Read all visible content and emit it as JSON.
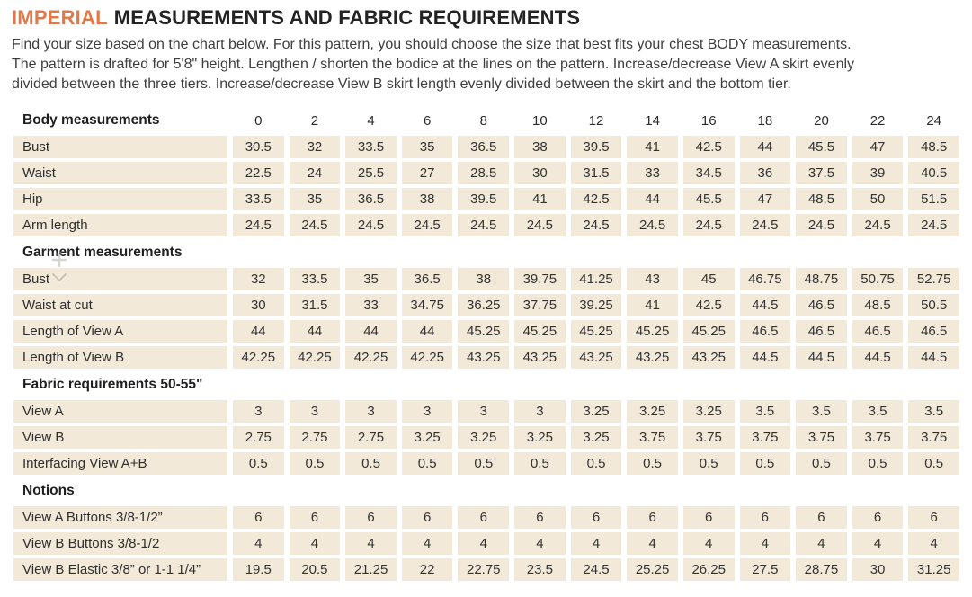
{
  "page": {
    "title": {
      "highlight": "IMPERIAL",
      "rest": "MEASUREMENTS AND FABRIC REQUIREMENTS"
    },
    "intro_lines": [
      "Find your size based on the chart below. For this pattern, you should choose the size that best fits your chest BODY measurements.",
      "The pattern is drafted for 5'8\" height. Lengthen / shorten the bodice at the lines on the pattern. Increase/decrease View A skirt evenly",
      "divided between the three tiers. Increase/decrease View B skirt length evenly divided between the skirt and the bottom tier."
    ]
  },
  "colors": {
    "accent_orange": "#e0794a",
    "row_beige": "#f2e9d8",
    "text_dark": "#232323",
    "text_body": "#3e3e3e"
  },
  "icons": {
    "cursor": "scroll-cursor"
  },
  "chart_data": {
    "type": "table",
    "title": "IMPERIAL MEASUREMENTS AND FABRIC REQUIREMENTS",
    "sizes": [
      "0",
      "2",
      "4",
      "6",
      "8",
      "10",
      "12",
      "14",
      "16",
      "18",
      "20",
      "22",
      "24"
    ],
    "sections": [
      {
        "header": "Body measurements",
        "show_sizes": true,
        "rows": [
          {
            "label": "Bust",
            "values": [
              "30.5",
              "32",
              "33.5",
              "35",
              "36.5",
              "38",
              "39.5",
              "41",
              "42.5",
              "44",
              "45.5",
              "47",
              "48.5"
            ]
          },
          {
            "label": "Waist",
            "values": [
              "22.5",
              "24",
              "25.5",
              "27",
              "28.5",
              "30",
              "31.5",
              "33",
              "34.5",
              "36",
              "37.5",
              "39",
              "40.5"
            ]
          },
          {
            "label": "Hip",
            "values": [
              "33.5",
              "35",
              "36.5",
              "38",
              "39.5",
              "41",
              "42.5",
              "44",
              "45.5",
              "47",
              "48.5",
              "50",
              "51.5"
            ]
          },
          {
            "label": "Arm length",
            "values": [
              "24.5",
              "24.5",
              "24.5",
              "24.5",
              "24.5",
              "24.5",
              "24.5",
              "24.5",
              "24.5",
              "24.5",
              "24.5",
              "24.5",
              "24.5"
            ]
          }
        ]
      },
      {
        "header": "Garment measurements",
        "show_sizes": false,
        "rows": [
          {
            "label": "Bust",
            "values": [
              "32",
              "33.5",
              "35",
              "36.5",
              "38",
              "39.75",
              "41.25",
              "43",
              "45",
              "46.75",
              "48.75",
              "50.75",
              "52.75"
            ]
          },
          {
            "label": "Waist at cut",
            "values": [
              "30",
              "31.5",
              "33",
              "34.75",
              "36.25",
              "37.75",
              "39.25",
              "41",
              "42.5",
              "44.5",
              "46.5",
              "48.5",
              "50.5"
            ]
          },
          {
            "label": "Length of View A",
            "values": [
              "44",
              "44",
              "44",
              "44",
              "45.25",
              "45.25",
              "45.25",
              "45.25",
              "45.25",
              "46.5",
              "46.5",
              "46.5",
              "46.5"
            ]
          },
          {
            "label": "Length of View B",
            "values": [
              "42.25",
              "42.25",
              "42.25",
              "42.25",
              "43.25",
              "43.25",
              "43.25",
              "43.25",
              "43.25",
              "44.5",
              "44.5",
              "44.5",
              "44.5"
            ]
          }
        ]
      },
      {
        "header": "Fabric requirements 50-55\"",
        "show_sizes": false,
        "rows": [
          {
            "label": "View A",
            "values": [
              "3",
              "3",
              "3",
              "3",
              "3",
              "3",
              "3.25",
              "3.25",
              "3.25",
              "3.5",
              "3.5",
              "3.5",
              "3.5"
            ]
          },
          {
            "label": "View B",
            "values": [
              "2.75",
              "2.75",
              "2.75",
              "3.25",
              "3.25",
              "3.25",
              "3.25",
              "3.75",
              "3.75",
              "3.75",
              "3.75",
              "3.75",
              "3.75"
            ]
          },
          {
            "label": "Interfacing View A+B",
            "values": [
              "0.5",
              "0.5",
              "0.5",
              "0.5",
              "0.5",
              "0.5",
              "0.5",
              "0.5",
              "0.5",
              "0.5",
              "0.5",
              "0.5",
              "0.5"
            ]
          }
        ]
      },
      {
        "header": "Notions",
        "show_sizes": false,
        "rows": [
          {
            "label": "View A Buttons 3/8-1/2”",
            "values": [
              "6",
              "6",
              "6",
              "6",
              "6",
              "6",
              "6",
              "6",
              "6",
              "6",
              "6",
              "6",
              "6"
            ]
          },
          {
            "label": "View B Buttons 3/8-1/2",
            "values": [
              "4",
              "4",
              "4",
              "4",
              "4",
              "4",
              "4",
              "4",
              "4",
              "4",
              "4",
              "4",
              "4"
            ]
          },
          {
            "label": "View B Elastic 3/8” or 1-1 1/4”",
            "values": [
              "19.5",
              "20.5",
              "21.25",
              "22",
              "22.75",
              "23.5",
              "24.5",
              "25.25",
              "26.25",
              "27.5",
              "28.75",
              "30",
              "31.25"
            ]
          }
        ]
      }
    ]
  }
}
